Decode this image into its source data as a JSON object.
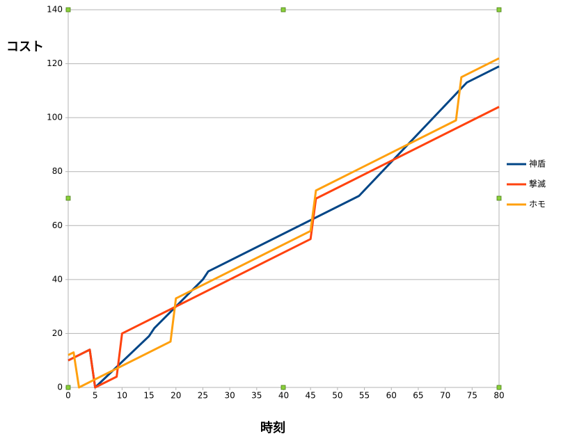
{
  "chart_data": {
    "type": "line",
    "x_label": "時刻",
    "y_label": "コスト",
    "xlim": [
      0,
      80
    ],
    "xticks": [
      0,
      5,
      10,
      15,
      20,
      25,
      30,
      35,
      40,
      45,
      50,
      55,
      60,
      65,
      70,
      75,
      80
    ],
    "ylim": [
      0,
      140
    ],
    "yticks": [
      0,
      20,
      40,
      60,
      80,
      100,
      120,
      140
    ],
    "grid": true,
    "legend": "right",
    "series": [
      {
        "name": "神盾",
        "color": "#004586",
        "x": [
          0,
          4,
          5,
          15,
          16,
          25,
          26,
          54,
          64,
          74,
          80
        ],
        "values": [
          10,
          14,
          0,
          19,
          22,
          40,
          43,
          71,
          92,
          113,
          119
        ]
      },
      {
        "name": "撃滅",
        "color": "#ff420e",
        "x": [
          0,
          4,
          5,
          9,
          10,
          45,
          46,
          80
        ],
        "values": [
          10,
          14,
          0,
          4,
          20,
          55,
          70,
          104
        ]
      },
      {
        "name": "ホモ",
        "color": "#ffa00e",
        "x": [
          0,
          1,
          2,
          19,
          20,
          45,
          46,
          72,
          73,
          80
        ],
        "values": [
          12,
          13,
          0,
          17,
          33,
          58,
          73,
          99,
          115,
          122
        ]
      }
    ]
  }
}
